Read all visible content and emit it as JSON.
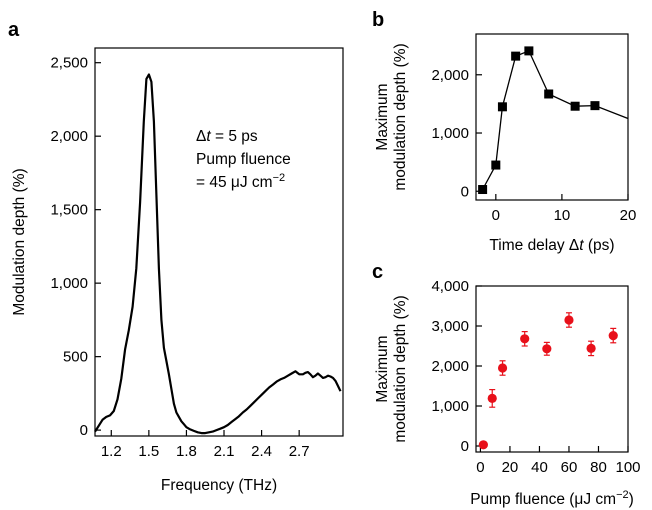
{
  "chart_data": [
    {
      "panel": "a",
      "type": "line",
      "xlabel": "Frequency (THz)",
      "ylabel": "Modulation depth (%)",
      "xlim": [
        1.07,
        3.05
      ],
      "ylim": [
        -40,
        2600
      ],
      "xticks": [
        "1.2",
        "1.5",
        "1.8",
        "2.1",
        "2.4",
        "2.7"
      ],
      "xtick_values": [
        1.2,
        1.5,
        1.8,
        2.1,
        2.4,
        2.7
      ],
      "yticks": [
        "0",
        "500",
        "1,000",
        "1,500",
        "2,000",
        "2,500"
      ],
      "ytick_values": [
        0,
        500,
        1000,
        1500,
        2000,
        2500
      ],
      "annotation": {
        "line1_symbol": "Δ",
        "line1_var": "t",
        "line1_rest": " = 5 ps",
        "line2": "Pump fluence",
        "line3_prefix": "= 45 μJ cm",
        "line3_sup": "−2"
      },
      "series": [
        {
          "color": "#000000",
          "x": [
            1.07,
            1.1,
            1.13,
            1.16,
            1.19,
            1.22,
            1.25,
            1.28,
            1.31,
            1.34,
            1.37,
            1.4,
            1.43,
            1.46,
            1.48,
            1.5,
            1.52,
            1.54,
            1.56,
            1.58,
            1.6,
            1.62,
            1.64,
            1.66,
            1.68,
            1.7,
            1.72,
            1.74,
            1.76,
            1.78,
            1.8,
            1.83,
            1.86,
            1.89,
            1.92,
            1.95,
            1.98,
            2.01,
            2.04,
            2.07,
            2.1,
            2.13,
            2.16,
            2.19,
            2.22,
            2.25,
            2.28,
            2.31,
            2.34,
            2.37,
            2.4,
            2.43,
            2.46,
            2.49,
            2.52,
            2.55,
            2.58,
            2.61,
            2.64,
            2.67,
            2.7,
            2.73,
            2.75,
            2.77,
            2.79,
            2.81,
            2.83,
            2.85,
            2.87,
            2.89,
            2.91,
            2.93,
            2.95,
            2.97,
            2.99,
            3.01,
            3.03
          ],
          "y": [
            -10,
            30,
            70,
            90,
            100,
            130,
            210,
            350,
            550,
            680,
            840,
            1100,
            1550,
            2100,
            2390,
            2420,
            2370,
            2100,
            1600,
            1100,
            750,
            560,
            470,
            380,
            280,
            180,
            120,
            90,
            60,
            40,
            20,
            5,
            -5,
            -15,
            -20,
            -20,
            -15,
            -10,
            0,
            10,
            20,
            35,
            55,
            75,
            95,
            120,
            140,
            165,
            190,
            215,
            240,
            265,
            290,
            310,
            330,
            345,
            355,
            370,
            385,
            400,
            380,
            380,
            390,
            395,
            380,
            360,
            370,
            385,
            370,
            355,
            360,
            370,
            365,
            355,
            335,
            300,
            265
          ]
        }
      ]
    },
    {
      "panel": "b",
      "type": "line",
      "xlabel_prefix": "Time delay Δ",
      "xlabel_var": "t",
      "xlabel_suffix": " (ps)",
      "ylabel_line1": "Maximum",
      "ylabel_line2": "modulation depth (%)",
      "xlim": [
        -3,
        20
      ],
      "ylim": [
        -150,
        2700
      ],
      "xticks": [
        "0",
        "10",
        "20"
      ],
      "xtick_values": [
        0,
        10,
        20
      ],
      "yticks": [
        "0",
        "1,000",
        "2,000"
      ],
      "ytick_values": [
        0,
        1000,
        2000
      ],
      "series": [
        {
          "color": "#000000",
          "marker": "square",
          "x": [
            -2,
            0,
            1,
            3,
            5,
            8,
            12,
            15
          ],
          "y": [
            30,
            450,
            1450,
            2320,
            2410,
            1670,
            1460,
            1470
          ],
          "line_extension_to": [
            20,
            1250
          ]
        }
      ]
    },
    {
      "panel": "c",
      "type": "scatter",
      "xlabel_prefix": "Pump fluence (μJ cm",
      "xlabel_sup": "−2",
      "xlabel_suffix": ")",
      "ylabel_line1": "Maximum",
      "ylabel_line2": "modulation depth (%)",
      "xlim": [
        -3,
        100
      ],
      "ylim": [
        -150,
        4000
      ],
      "xticks": [
        "0",
        "20",
        "40",
        "60",
        "80",
        "100"
      ],
      "xtick_values": [
        0,
        20,
        40,
        60,
        80,
        100
      ],
      "yticks": [
        "0",
        "1,000",
        "2,000",
        "3,000",
        "4,000"
      ],
      "ytick_values": [
        0,
        1000,
        2000,
        3000,
        4000
      ],
      "series": [
        {
          "color": "#e8101a",
          "marker": "circle",
          "x": [
            2,
            8,
            15,
            30,
            45,
            60,
            75,
            90
          ],
          "y": [
            30,
            1190,
            1950,
            2680,
            2430,
            3150,
            2440,
            2760
          ],
          "yerr": [
            0,
            220,
            180,
            180,
            160,
            180,
            180,
            180
          ]
        }
      ]
    }
  ]
}
